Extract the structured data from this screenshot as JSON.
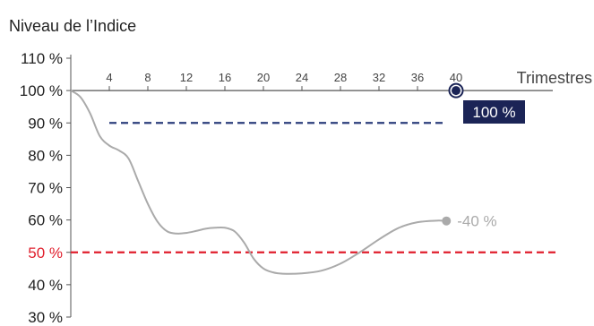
{
  "chart_data": {
    "type": "line",
    "title": "Niveau de l’Indice",
    "xlabel": "Trimestres",
    "ylabel": "",
    "x_ticks": [
      4,
      8,
      12,
      16,
      20,
      24,
      28,
      32,
      36,
      40
    ],
    "xlim": [
      0,
      40
    ],
    "y_tick_labels": [
      "110 %",
      "100 %",
      "90 %",
      "80 %",
      "70 %",
      "60 %",
      "50 %",
      "40 %",
      "30 %"
    ],
    "y_tick_values": [
      110,
      100,
      90,
      80,
      70,
      60,
      50,
      40,
      30
    ],
    "ylim": [
      30,
      110
    ],
    "grid": false,
    "series": [
      {
        "color": "#aaaaaa",
        "points": [
          [
            0,
            100
          ],
          [
            1,
            98
          ],
          [
            2,
            93
          ],
          [
            3,
            86
          ],
          [
            4,
            83
          ],
          [
            5,
            81.5
          ],
          [
            6,
            79
          ],
          [
            7,
            72
          ],
          [
            8,
            65
          ],
          [
            9,
            59.5
          ],
          [
            10,
            56.5
          ],
          [
            11,
            55.8
          ],
          [
            12,
            56
          ],
          [
            13,
            56.6
          ],
          [
            14,
            57.3
          ],
          [
            15,
            57.6
          ],
          [
            16,
            57.6
          ],
          [
            17,
            56.5
          ],
          [
            18,
            53
          ],
          [
            19,
            48
          ],
          [
            20,
            45
          ],
          [
            21,
            43.8
          ],
          [
            22,
            43.4
          ],
          [
            24,
            43.5
          ],
          [
            26,
            44.3
          ],
          [
            28,
            46.5
          ],
          [
            30,
            50
          ],
          [
            32,
            54
          ],
          [
            34,
            57.5
          ],
          [
            36,
            59.3
          ],
          [
            38,
            59.8
          ],
          [
            39,
            59.7
          ]
        ],
        "end_label": "-40 %"
      }
    ],
    "reference_lines": [
      {
        "y": 90,
        "color": "#2d3f7c",
        "style": "dashed",
        "x_start": 4,
        "x_end": 39
      },
      {
        "y": 50,
        "color": "#e01f2d",
        "style": "dashed",
        "x_start": 0,
        "x_end": 50.5,
        "highlight_tick": "50 %"
      }
    ],
    "marker": {
      "x": 40,
      "y": 100,
      "label": "100 %",
      "color": "#1b2456"
    },
    "colors": {
      "axis": "#555555",
      "text": "#222222",
      "red": "#e01f2d",
      "navy": "#1b2456",
      "dash_blue": "#2d3f7c",
      "series": "#aaaaaa"
    }
  }
}
